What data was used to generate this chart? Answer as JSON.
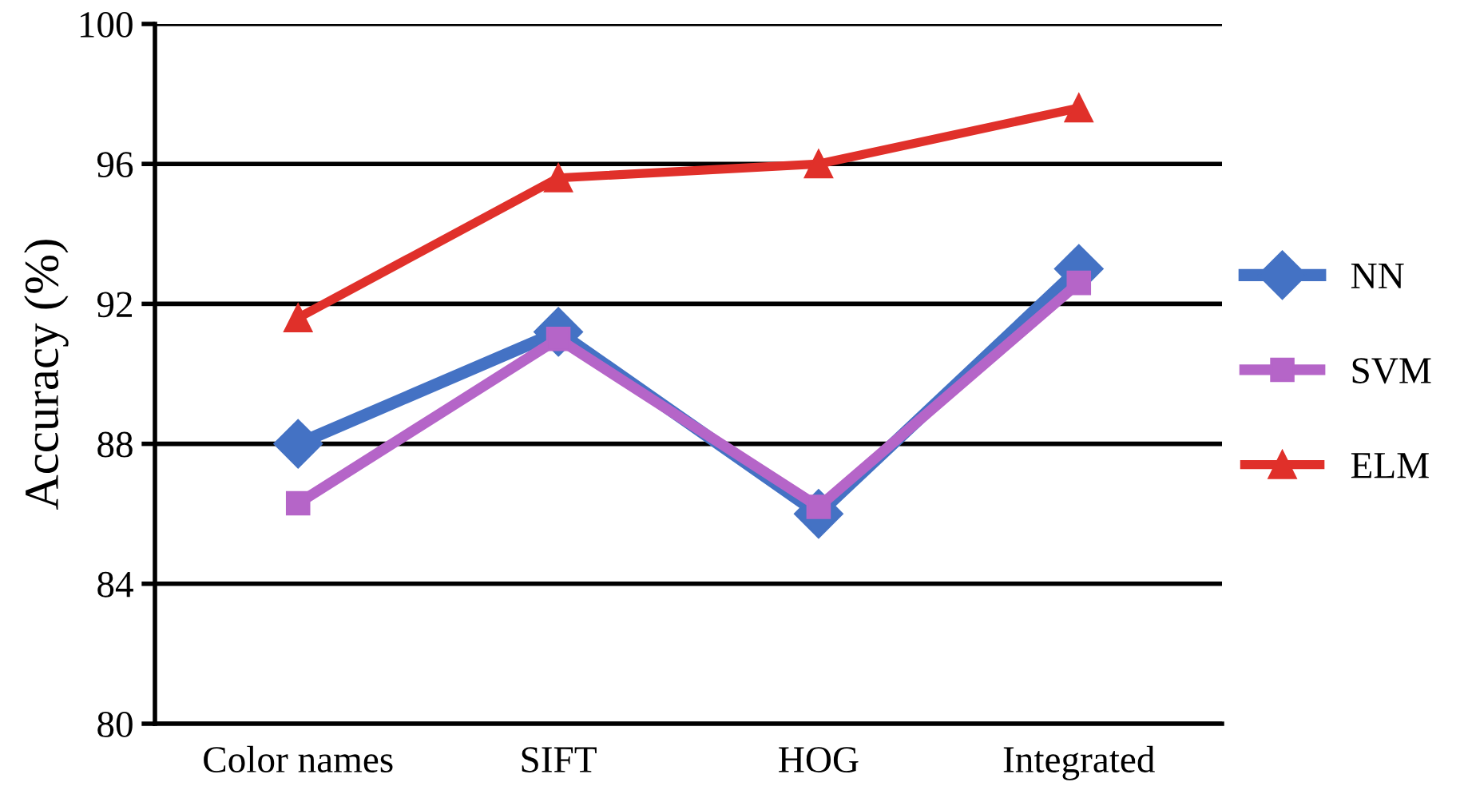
{
  "chart_data": {
    "type": "line",
    "ylabel": "Accuracy (%)",
    "categories": [
      "Color names",
      "SIFT",
      "HOG",
      "Integrated"
    ],
    "series": [
      {
        "name": "NN",
        "color": "#4472c4",
        "marker": "diamond",
        "values": [
          88.0,
          91.2,
          86.0,
          93.0
        ]
      },
      {
        "name": "SVM",
        "color": "#b565c8",
        "marker": "square",
        "values": [
          86.3,
          91.0,
          86.2,
          92.6
        ]
      },
      {
        "name": "ELM",
        "color": "#e0302a",
        "marker": "triangle",
        "values": [
          91.6,
          95.6,
          96.0,
          97.6
        ]
      }
    ],
    "ylim": [
      80,
      100
    ],
    "yticks": [
      80,
      84,
      88,
      92,
      96,
      100
    ],
    "grid": "y",
    "legend": "right",
    "line_style": "solid"
  }
}
